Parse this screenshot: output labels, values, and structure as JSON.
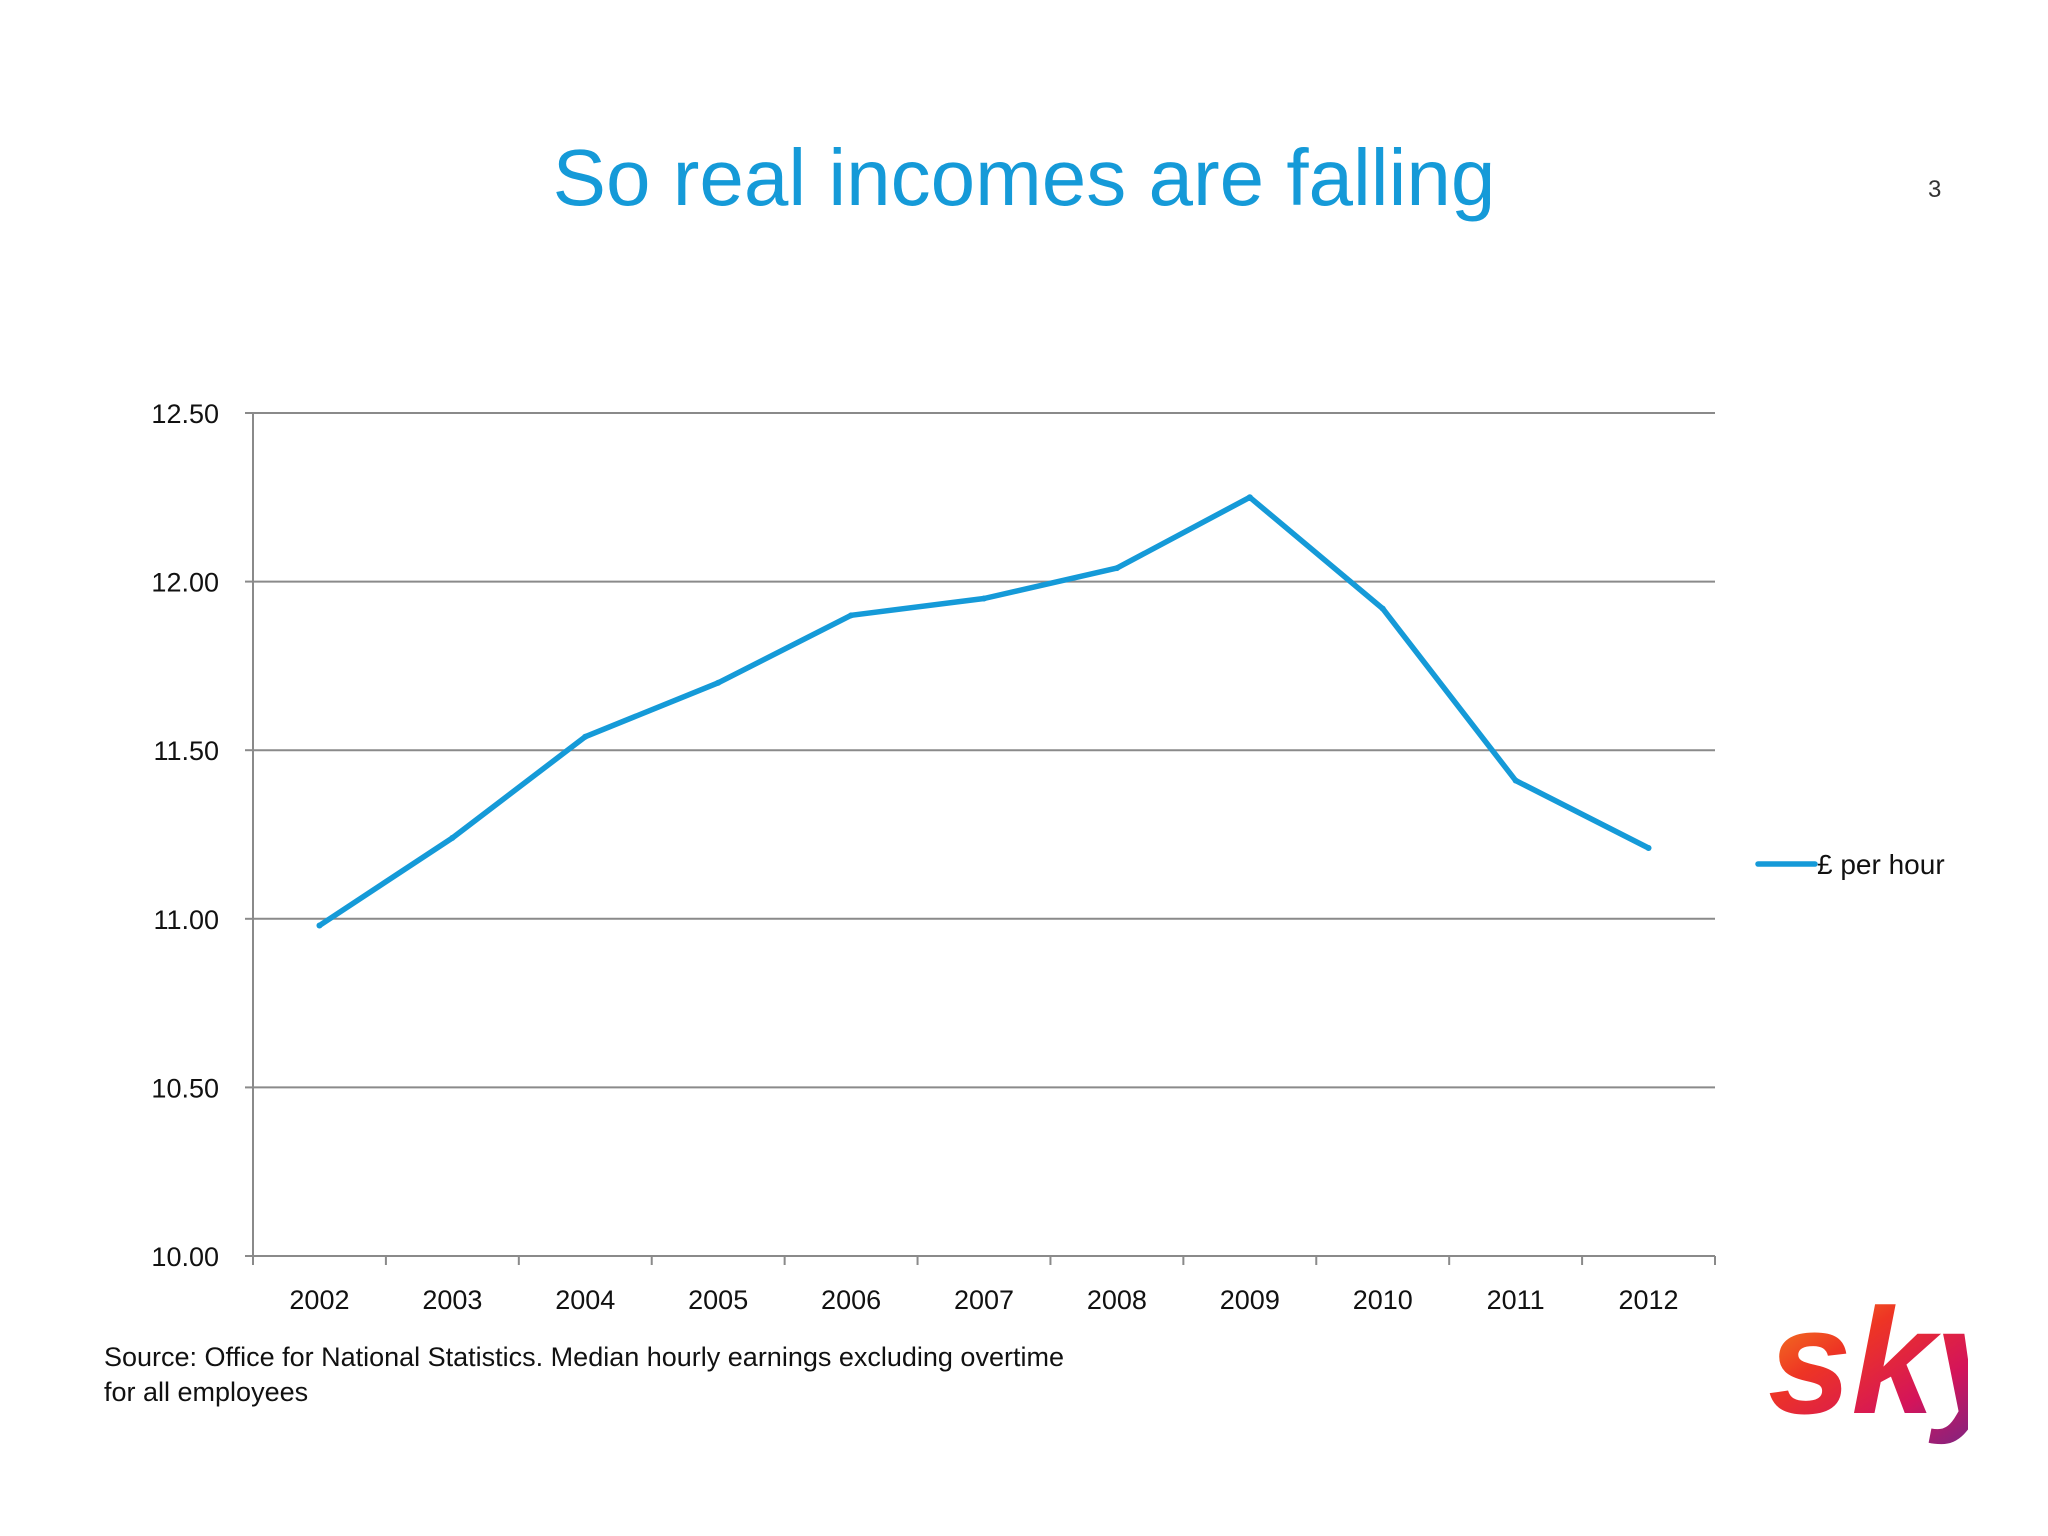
{
  "slide": {
    "title": "So real incomes are falling",
    "number": "3",
    "source_note": "Source: Office for National Statistics. Median hourly earnings excluding overtime for all employees",
    "logo_text": "sky"
  },
  "colors": {
    "title": "#159ad8",
    "series": "#159ad8",
    "gridline": "#8a8a8a",
    "text": "#111111"
  },
  "chart_data": {
    "type": "line",
    "title": "",
    "xlabel": "",
    "ylabel": "",
    "categories": [
      "2002",
      "2003",
      "2004",
      "2005",
      "2006",
      "2007",
      "2008",
      "2009",
      "2010",
      "2011",
      "2012"
    ],
    "series": [
      {
        "name": "£ per hour",
        "values": [
          10.98,
          11.24,
          11.54,
          11.7,
          11.9,
          11.95,
          12.04,
          12.25,
          11.92,
          11.41,
          11.21
        ]
      }
    ],
    "ylim": [
      10.0,
      12.5
    ],
    "yticks": [
      10.0,
      10.5,
      11.0,
      11.5,
      12.0,
      12.5
    ],
    "ytick_labels": [
      "10.00",
      "10.50",
      "11.00",
      "11.50",
      "12.00",
      "12.50"
    ],
    "grid": "horizontal",
    "legend": "right"
  }
}
